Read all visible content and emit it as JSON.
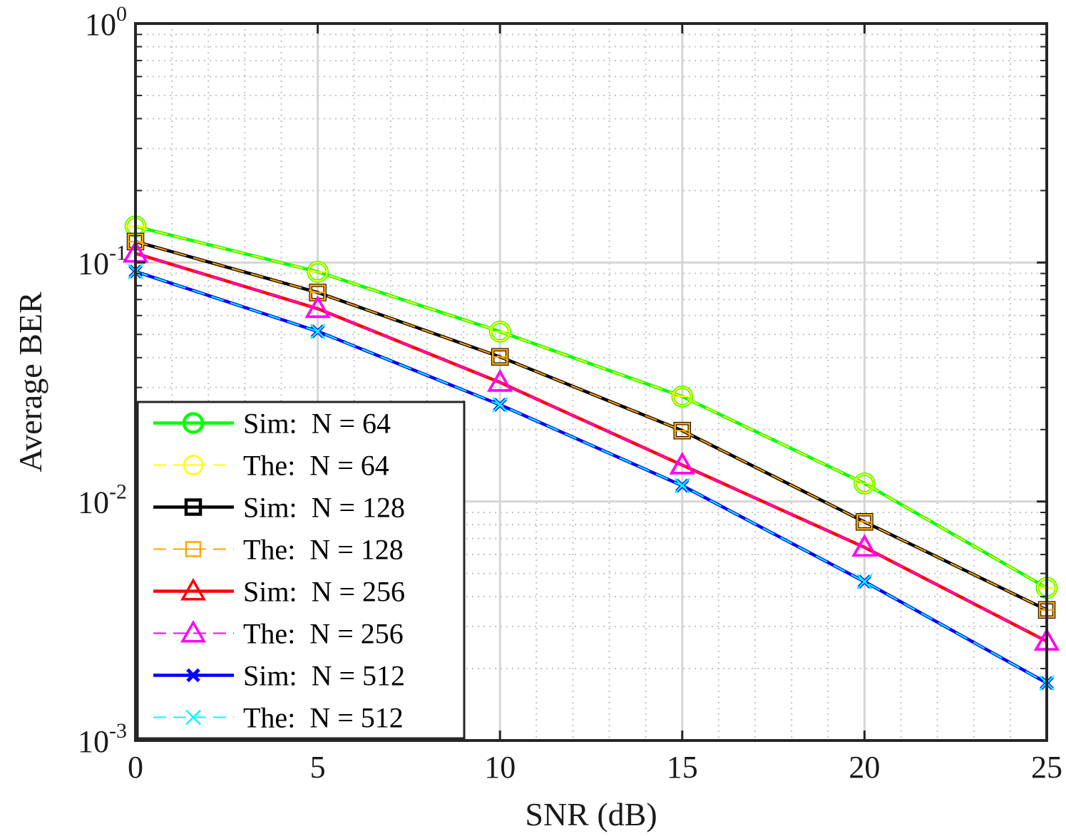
{
  "chart_data": {
    "type": "line",
    "xlabel": "SNR (dB)",
    "ylabel": "Average BER",
    "xlim": [
      0,
      25
    ],
    "ylim": [
      0.001,
      1
    ],
    "yscale": "log",
    "grid": true,
    "legend_position": "bottom-left",
    "x_ticks": [
      "0",
      "5",
      "10",
      "15",
      "20",
      "25"
    ],
    "y_ticks": [
      {
        "base": "10",
        "exp": "0"
      },
      {
        "base": "10",
        "exp": "-1"
      },
      {
        "base": "10",
        "exp": "-2"
      },
      {
        "base": "10",
        "exp": "-3"
      }
    ],
    "x": [
      0,
      5,
      10,
      15,
      20,
      25
    ],
    "series": [
      {
        "name": "Sim:  N = 64",
        "values": [
          0.1416,
          0.0914,
          0.0514,
          0.0275,
          0.0119,
          0.00435
        ],
        "color": "#00ff00",
        "marker": "circle",
        "dash": "solid",
        "width": 4.5
      },
      {
        "name": "The:  N = 64",
        "values": [
          0.1416,
          0.0914,
          0.0514,
          0.0275,
          0.0119,
          0.00435
        ],
        "color": "#ffff00",
        "marker": "circle-bar",
        "dash": "dashed",
        "width": 2
      },
      {
        "name": "Sim:  N = 128",
        "values": [
          0.1224,
          0.0749,
          0.0403,
          0.0198,
          0.00822,
          0.00352
        ],
        "color": "#000000",
        "marker": "square",
        "dash": "solid",
        "width": 4.5
      },
      {
        "name": "The:  N = 128",
        "values": [
          0.1224,
          0.0749,
          0.0403,
          0.0198,
          0.00822,
          0.00352
        ],
        "color": "#ffa500",
        "marker": "square-bar",
        "dash": "dashed",
        "width": 2
      },
      {
        "name": "Sim:  N = 256",
        "values": [
          0.1092,
          0.0641,
          0.0315,
          0.0142,
          0.00643,
          0.0026
        ],
        "color": "#ff0000",
        "marker": "triangle",
        "dash": "solid",
        "width": 4.5
      },
      {
        "name": "The:  N = 256",
        "values": [
          0.1092,
          0.0641,
          0.0315,
          0.0142,
          0.00643,
          0.0026
        ],
        "color": "#ff00ff",
        "marker": "triangle",
        "dash": "dashed",
        "width": 2
      },
      {
        "name": "Sim:  N = 512",
        "values": [
          0.0917,
          0.0515,
          0.0254,
          0.01165,
          0.00462,
          0.00174
        ],
        "color": "#0000ff",
        "marker": "x-bold",
        "dash": "solid",
        "width": 4.5
      },
      {
        "name": "The:  N = 512",
        "values": [
          0.0917,
          0.0515,
          0.0254,
          0.01165,
          0.00462,
          0.00174
        ],
        "color": "#00ffff",
        "marker": "x",
        "dash": "dashed",
        "width": 2
      }
    ]
  }
}
